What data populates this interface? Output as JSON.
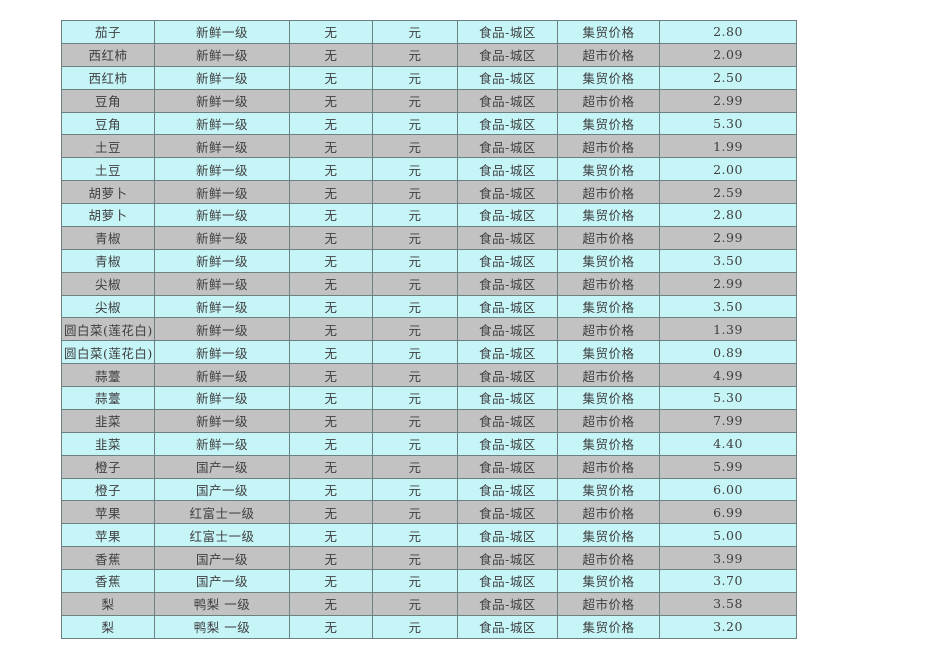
{
  "colors": {
    "row_cyan": "#c6f5f8",
    "row_gray": "#c2c2c2",
    "border": "#6e8182",
    "text": "#3f3f3f",
    "page_background": "#ffffff"
  },
  "table": {
    "column_names": [
      "item",
      "grade",
      "spec",
      "unit",
      "region",
      "price_type",
      "price"
    ],
    "rows": [
      {
        "shade": "cyan",
        "cells": [
          "茄子",
          "新鲜一级",
          "无",
          "元",
          "食品-城区",
          "集贸价格",
          "2.80"
        ]
      },
      {
        "shade": "gray",
        "cells": [
          "西红柿",
          "新鲜一级",
          "无",
          "元",
          "食品-城区",
          "超市价格",
          "2.09"
        ]
      },
      {
        "shade": "cyan",
        "cells": [
          "西红柿",
          "新鲜一级",
          "无",
          "元",
          "食品-城区",
          "集贸价格",
          "2.50"
        ]
      },
      {
        "shade": "gray",
        "cells": [
          "豆角",
          "新鲜一级",
          "无",
          "元",
          "食品-城区",
          "超市价格",
          "2.99"
        ]
      },
      {
        "shade": "cyan",
        "cells": [
          "豆角",
          "新鲜一级",
          "无",
          "元",
          "食品-城区",
          "集贸价格",
          "5.30"
        ]
      },
      {
        "shade": "gray",
        "cells": [
          "土豆",
          "新鲜一级",
          "无",
          "元",
          "食品-城区",
          "超市价格",
          "1.99"
        ]
      },
      {
        "shade": "cyan",
        "cells": [
          "土豆",
          "新鲜一级",
          "无",
          "元",
          "食品-城区",
          "集贸价格",
          "2.00"
        ]
      },
      {
        "shade": "gray",
        "cells": [
          "胡萝卜",
          "新鲜一级",
          "无",
          "元",
          "食品-城区",
          "超市价格",
          "2.59"
        ]
      },
      {
        "shade": "cyan",
        "cells": [
          "胡萝卜",
          "新鲜一级",
          "无",
          "元",
          "食品-城区",
          "集贸价格",
          "2.80"
        ]
      },
      {
        "shade": "gray",
        "cells": [
          "青椒",
          "新鲜一级",
          "无",
          "元",
          "食品-城区",
          "超市价格",
          "2.99"
        ]
      },
      {
        "shade": "cyan",
        "cells": [
          "青椒",
          "新鲜一级",
          "无",
          "元",
          "食品-城区",
          "集贸价格",
          "3.50"
        ]
      },
      {
        "shade": "gray",
        "cells": [
          "尖椒",
          "新鲜一级",
          "无",
          "元",
          "食品-城区",
          "超市价格",
          "2.99"
        ]
      },
      {
        "shade": "cyan",
        "cells": [
          "尖椒",
          "新鲜一级",
          "无",
          "元",
          "食品-城区",
          "集贸价格",
          "3.50"
        ]
      },
      {
        "shade": "gray",
        "cells": [
          "圆白菜(莲花白)",
          "新鲜一级",
          "无",
          "元",
          "食品-城区",
          "超市价格",
          "1.39"
        ]
      },
      {
        "shade": "cyan",
        "cells": [
          "圆白菜(莲花白)",
          "新鲜一级",
          "无",
          "元",
          "食品-城区",
          "集贸价格",
          "0.89"
        ]
      },
      {
        "shade": "gray",
        "cells": [
          "蒜薹",
          "新鲜一级",
          "无",
          "元",
          "食品-城区",
          "超市价格",
          "4.99"
        ]
      },
      {
        "shade": "cyan",
        "cells": [
          "蒜薹",
          "新鲜一级",
          "无",
          "元",
          "食品-城区",
          "集贸价格",
          "5.30"
        ]
      },
      {
        "shade": "gray",
        "cells": [
          "韭菜",
          "新鲜一级",
          "无",
          "元",
          "食品-城区",
          "超市价格",
          "7.99"
        ]
      },
      {
        "shade": "cyan",
        "cells": [
          "韭菜",
          "新鲜一级",
          "无",
          "元",
          "食品-城区",
          "集贸价格",
          "4.40"
        ]
      },
      {
        "shade": "gray",
        "cells": [
          "橙子",
          "国产一级",
          "无",
          "元",
          "食品-城区",
          "超市价格",
          "5.99"
        ]
      },
      {
        "shade": "cyan",
        "cells": [
          "橙子",
          "国产一级",
          "无",
          "元",
          "食品-城区",
          "集贸价格",
          "6.00"
        ]
      },
      {
        "shade": "gray",
        "cells": [
          "苹果",
          "红富士一级",
          "无",
          "元",
          "食品-城区",
          "超市价格",
          "6.99"
        ]
      },
      {
        "shade": "cyan",
        "cells": [
          "苹果",
          "红富士一级",
          "无",
          "元",
          "食品-城区",
          "集贸价格",
          "5.00"
        ]
      },
      {
        "shade": "gray",
        "cells": [
          "香蕉",
          "国产一级",
          "无",
          "元",
          "食品-城区",
          "超市价格",
          "3.99"
        ]
      },
      {
        "shade": "cyan",
        "cells": [
          "香蕉",
          "国产一级",
          "无",
          "元",
          "食品-城区",
          "集贸价格",
          "3.70"
        ]
      },
      {
        "shade": "gray",
        "cells": [
          "梨",
          "鸭梨 一级",
          "无",
          "元",
          "食品-城区",
          "超市价格",
          "3.58"
        ]
      },
      {
        "shade": "cyan",
        "cells": [
          "梨",
          "鸭梨 一级",
          "无",
          "元",
          "食品-城区",
          "集贸价格",
          "3.20"
        ]
      }
    ]
  }
}
